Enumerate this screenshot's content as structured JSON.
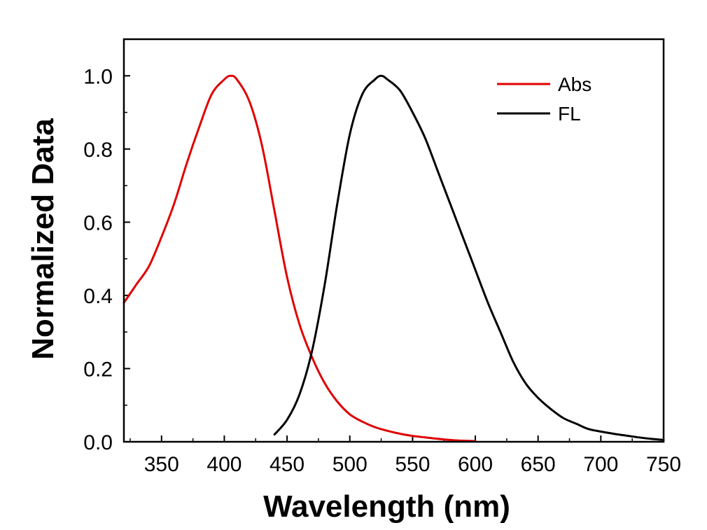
{
  "chart_data": {
    "type": "line",
    "title": "",
    "xlabel": "Wavelength (nm)",
    "ylabel": "Normalized Data",
    "xlim": [
      320,
      750
    ],
    "ylim": [
      0,
      1.1
    ],
    "x_ticks": [
      350,
      400,
      450,
      500,
      550,
      600,
      650,
      700,
      750
    ],
    "x_tick_labels": [
      "350",
      "400",
      "450",
      "500",
      "550",
      "600",
      "650",
      "700",
      "750"
    ],
    "y_ticks": [
      0.0,
      0.2,
      0.4,
      0.6,
      0.8,
      1.0
    ],
    "y_tick_labels": [
      "0.0",
      "0.2",
      "0.4",
      "0.6",
      "0.8",
      "1.0"
    ],
    "grid": false,
    "legend_position": "top-right",
    "series": [
      {
        "name": "Abs",
        "color": "#e00000",
        "x": [
          320,
          330,
          340,
          350,
          360,
          370,
          380,
          390,
          400,
          405,
          410,
          420,
          430,
          440,
          450,
          460,
          470,
          480,
          490,
          500,
          510,
          520,
          530,
          540,
          550,
          560,
          570,
          580,
          590,
          600
        ],
        "y": [
          0.38,
          0.43,
          0.48,
          0.56,
          0.65,
          0.76,
          0.86,
          0.95,
          0.99,
          1.0,
          0.99,
          0.93,
          0.81,
          0.63,
          0.45,
          0.32,
          0.23,
          0.16,
          0.11,
          0.075,
          0.055,
          0.04,
          0.03,
          0.022,
          0.016,
          0.012,
          0.008,
          0.005,
          0.003,
          0.002
        ]
      },
      {
        "name": "FL",
        "color": "#000000",
        "x": [
          440,
          450,
          460,
          470,
          480,
          490,
          500,
          510,
          520,
          525,
          530,
          540,
          550,
          560,
          570,
          580,
          590,
          600,
          610,
          620,
          630,
          640,
          650,
          660,
          670,
          680,
          690,
          700,
          710,
          720,
          730,
          740,
          750
        ],
        "y": [
          0.02,
          0.06,
          0.13,
          0.25,
          0.43,
          0.65,
          0.84,
          0.95,
          0.99,
          1.0,
          0.99,
          0.96,
          0.9,
          0.83,
          0.74,
          0.65,
          0.56,
          0.47,
          0.38,
          0.3,
          0.22,
          0.16,
          0.12,
          0.09,
          0.065,
          0.05,
          0.035,
          0.028,
          0.022,
          0.017,
          0.012,
          0.008,
          0.005
        ]
      }
    ]
  }
}
